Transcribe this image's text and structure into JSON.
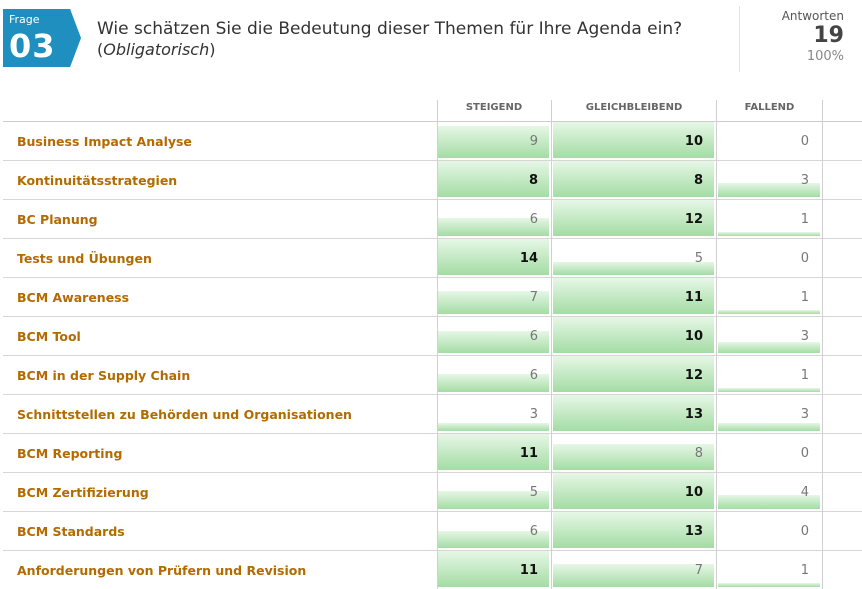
{
  "question": {
    "badge_label": "Frage",
    "badge_number": "03",
    "title": "Wie schätzen Sie die Bedeutung dieser Themen für Ihre Agenda ein?",
    "subtitle_open": "(",
    "subtitle_em": "Obligatorisch",
    "subtitle_close": ")"
  },
  "answers": {
    "label": "Antworten",
    "count": "19",
    "percent": "100%"
  },
  "columns": [
    "STEIGEND",
    "GLEICHBLEIBEND",
    "FALLEND"
  ],
  "total_responses": 19,
  "colors": {
    "badge": "#1e8fbf",
    "row_label": "#b36b00",
    "bar_top": "#e6f7e6",
    "bar_bottom": "#a4dca4"
  },
  "rows": [
    {
      "label": "Business Impact Analyse",
      "values": [
        9,
        10,
        0
      ]
    },
    {
      "label": "Kontinuitätsstrategien",
      "values": [
        8,
        8,
        3
      ]
    },
    {
      "label": "BC Planung",
      "values": [
        6,
        12,
        1
      ]
    },
    {
      "label": "Tests und Übungen",
      "values": [
        14,
        5,
        0
      ]
    },
    {
      "label": "BCM Awareness",
      "values": [
        7,
        11,
        1
      ]
    },
    {
      "label": "BCM Tool",
      "values": [
        6,
        10,
        3
      ]
    },
    {
      "label": "BCM in der Supply Chain",
      "values": [
        6,
        12,
        1
      ]
    },
    {
      "label": "Schnittstellen zu Behörden und Organisationen",
      "values": [
        3,
        13,
        3
      ]
    },
    {
      "label": "BCM Reporting",
      "values": [
        11,
        8,
        0
      ]
    },
    {
      "label": "BCM Zertifizierung",
      "values": [
        5,
        10,
        4
      ]
    },
    {
      "label": "BCM Standards",
      "values": [
        6,
        13,
        0
      ]
    },
    {
      "label": "Anforderungen von Prüfern und Revision",
      "values": [
        11,
        7,
        1
      ]
    }
  ]
}
